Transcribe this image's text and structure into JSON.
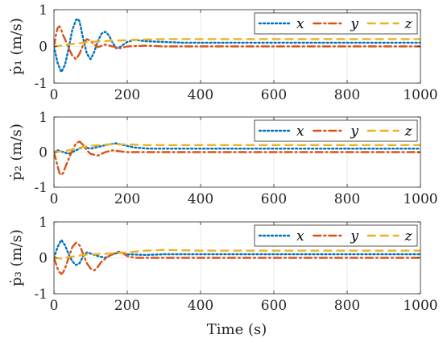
{
  "figure": {
    "xlabel": "Time (s)"
  },
  "chart_data": [
    {
      "type": "line",
      "ylabel": "ṗ₁ (m/s)",
      "xlim": [
        0,
        1000
      ],
      "ylim": [
        -1,
        1
      ],
      "xticks": [
        0,
        200,
        400,
        600,
        800,
        1000
      ],
      "yticks": [
        -1,
        0,
        1
      ],
      "grid": true,
      "legend": "top-right",
      "series": [
        {
          "name": "x",
          "color": "#0072BD",
          "style": "dotted",
          "x": [
            0,
            10,
            20,
            30,
            40,
            50,
            60,
            65,
            70,
            80,
            90,
            100,
            110,
            120,
            130,
            140,
            150,
            160,
            170,
            180,
            200,
            220,
            250,
            300,
            350,
            400,
            500,
            600,
            700,
            800,
            900,
            1000
          ],
          "y": [
            0.0,
            -0.45,
            -0.7,
            -0.5,
            -0.05,
            0.45,
            0.72,
            0.75,
            0.68,
            0.2,
            -0.2,
            -0.35,
            -0.15,
            0.15,
            0.35,
            0.4,
            0.3,
            0.1,
            -0.05,
            -0.02,
            0.12,
            0.18,
            0.14,
            0.12,
            0.1,
            0.1,
            0.1,
            0.1,
            0.1,
            0.1,
            0.1,
            0.1
          ]
        },
        {
          "name": "y",
          "color": "#D95319",
          "style": "dash-dot",
          "x": [
            0,
            5,
            10,
            15,
            20,
            25,
            30,
            40,
            50,
            60,
            70,
            80,
            90,
            100,
            110,
            120,
            140,
            160,
            180,
            200,
            250,
            300,
            400,
            500,
            600,
            700,
            800,
            900,
            1000
          ],
          "y": [
            0.0,
            0.3,
            0.5,
            0.55,
            0.45,
            0.3,
            0.2,
            -0.05,
            -0.25,
            -0.35,
            -0.2,
            0.05,
            0.2,
            0.15,
            0.05,
            -0.02,
            0.05,
            0.0,
            -0.05,
            0.0,
            0.02,
            0.0,
            0.0,
            0.0,
            0.0,
            0.0,
            0.0,
            0.0,
            0.0
          ]
        },
        {
          "name": "z",
          "color": "#EDB120",
          "style": "dashed",
          "x": [
            0,
            20,
            40,
            60,
            80,
            100,
            150,
            200,
            250,
            300,
            400,
            500,
            600,
            700,
            800,
            900,
            1000
          ],
          "y": [
            0.0,
            0.02,
            0.05,
            0.08,
            0.1,
            0.12,
            0.15,
            0.17,
            0.19,
            0.2,
            0.2,
            0.2,
            0.2,
            0.2,
            0.2,
            0.2,
            0.2
          ]
        }
      ]
    },
    {
      "type": "line",
      "ylabel": "ṗ₂ (m/s)",
      "xlim": [
        0,
        1000
      ],
      "ylim": [
        -1,
        1
      ],
      "xticks": [
        0,
        200,
        400,
        600,
        800,
        1000
      ],
      "yticks": [
        -1,
        0,
        1
      ],
      "grid": true,
      "legend": "top-right",
      "series": [
        {
          "name": "x",
          "color": "#0072BD",
          "style": "dotted",
          "x": [
            0,
            10,
            20,
            40,
            60,
            80,
            100,
            120,
            150,
            170,
            190,
            220,
            260,
            300,
            400,
            500,
            600,
            700,
            800,
            900,
            1000
          ],
          "y": [
            0.0,
            0.05,
            0.02,
            -0.05,
            0.05,
            0.15,
            0.1,
            0.15,
            0.22,
            0.25,
            0.2,
            0.13,
            0.1,
            0.1,
            0.1,
            0.1,
            0.1,
            0.1,
            0.1,
            0.1,
            0.1
          ]
        },
        {
          "name": "y",
          "color": "#D95319",
          "style": "dash-dot",
          "x": [
            0,
            5,
            10,
            15,
            20,
            25,
            30,
            40,
            50,
            60,
            70,
            80,
            90,
            100,
            120,
            140,
            160,
            180,
            200,
            250,
            300,
            400,
            500,
            600,
            700,
            800,
            900,
            1000
          ],
          "y": [
            0.0,
            -0.2,
            -0.4,
            -0.6,
            -0.65,
            -0.6,
            -0.45,
            -0.2,
            0.05,
            0.25,
            0.3,
            0.2,
            0.05,
            -0.05,
            -0.1,
            0.0,
            0.05,
            0.02,
            0.0,
            0.0,
            0.0,
            0.0,
            0.0,
            0.0,
            0.0,
            0.0,
            0.0,
            0.0
          ]
        },
        {
          "name": "z",
          "color": "#EDB120",
          "style": "dashed",
          "x": [
            0,
            20,
            40,
            60,
            80,
            100,
            150,
            200,
            250,
            300,
            400,
            500,
            600,
            700,
            800,
            900,
            1000
          ],
          "y": [
            0.0,
            0.02,
            0.05,
            0.1,
            0.15,
            0.18,
            0.22,
            0.22,
            0.2,
            0.2,
            0.2,
            0.2,
            0.2,
            0.2,
            0.2,
            0.2,
            0.2
          ]
        }
      ]
    },
    {
      "type": "line",
      "ylabel": "ṗ₃ (m/s)",
      "xlim": [
        0,
        1000
      ],
      "ylim": [
        -1,
        1
      ],
      "xticks": [
        0,
        200,
        400,
        600,
        800,
        1000
      ],
      "yticks": [
        -1,
        0,
        1
      ],
      "grid": true,
      "legend": "top-right",
      "series": [
        {
          "name": "x",
          "color": "#0072BD",
          "style": "dotted",
          "x": [
            0,
            10,
            20,
            30,
            40,
            50,
            60,
            70,
            80,
            90,
            100,
            120,
            140,
            160,
            180,
            200,
            250,
            300,
            400,
            500,
            600,
            700,
            800,
            900,
            1000
          ],
          "y": [
            0.0,
            0.3,
            0.5,
            0.35,
            0.1,
            -0.1,
            -0.2,
            -0.15,
            0.05,
            0.15,
            0.12,
            0.05,
            0.0,
            0.1,
            0.15,
            0.1,
            0.08,
            0.1,
            0.1,
            0.1,
            0.1,
            0.1,
            0.1,
            0.1,
            0.1
          ]
        },
        {
          "name": "y",
          "color": "#D95319",
          "style": "dash-dot",
          "x": [
            0,
            5,
            10,
            15,
            20,
            25,
            30,
            40,
            50,
            60,
            70,
            80,
            90,
            100,
            110,
            120,
            130,
            150,
            170,
            180,
            190,
            200,
            220,
            250,
            300,
            400,
            500,
            600,
            700,
            800,
            900,
            1000
          ],
          "y": [
            0.0,
            -0.15,
            -0.3,
            -0.4,
            -0.45,
            -0.4,
            -0.3,
            0.0,
            0.3,
            0.42,
            0.35,
            0.1,
            -0.15,
            -0.3,
            -0.35,
            -0.25,
            -0.1,
            0.05,
            0.15,
            0.18,
            0.12,
            0.05,
            0.0,
            0.0,
            0.0,
            0.0,
            0.0,
            0.0,
            0.0,
            0.0,
            0.0,
            0.0
          ]
        },
        {
          "name": "z",
          "color": "#EDB120",
          "style": "dashed",
          "x": [
            0,
            20,
            40,
            60,
            80,
            100,
            150,
            200,
            250,
            300,
            400,
            500,
            600,
            700,
            800,
            900,
            1000
          ],
          "y": [
            0.0,
            -0.02,
            0.02,
            0.05,
            0.08,
            0.1,
            0.12,
            0.15,
            0.2,
            0.22,
            0.2,
            0.2,
            0.2,
            0.2,
            0.2,
            0.2,
            0.2
          ]
        }
      ]
    }
  ]
}
